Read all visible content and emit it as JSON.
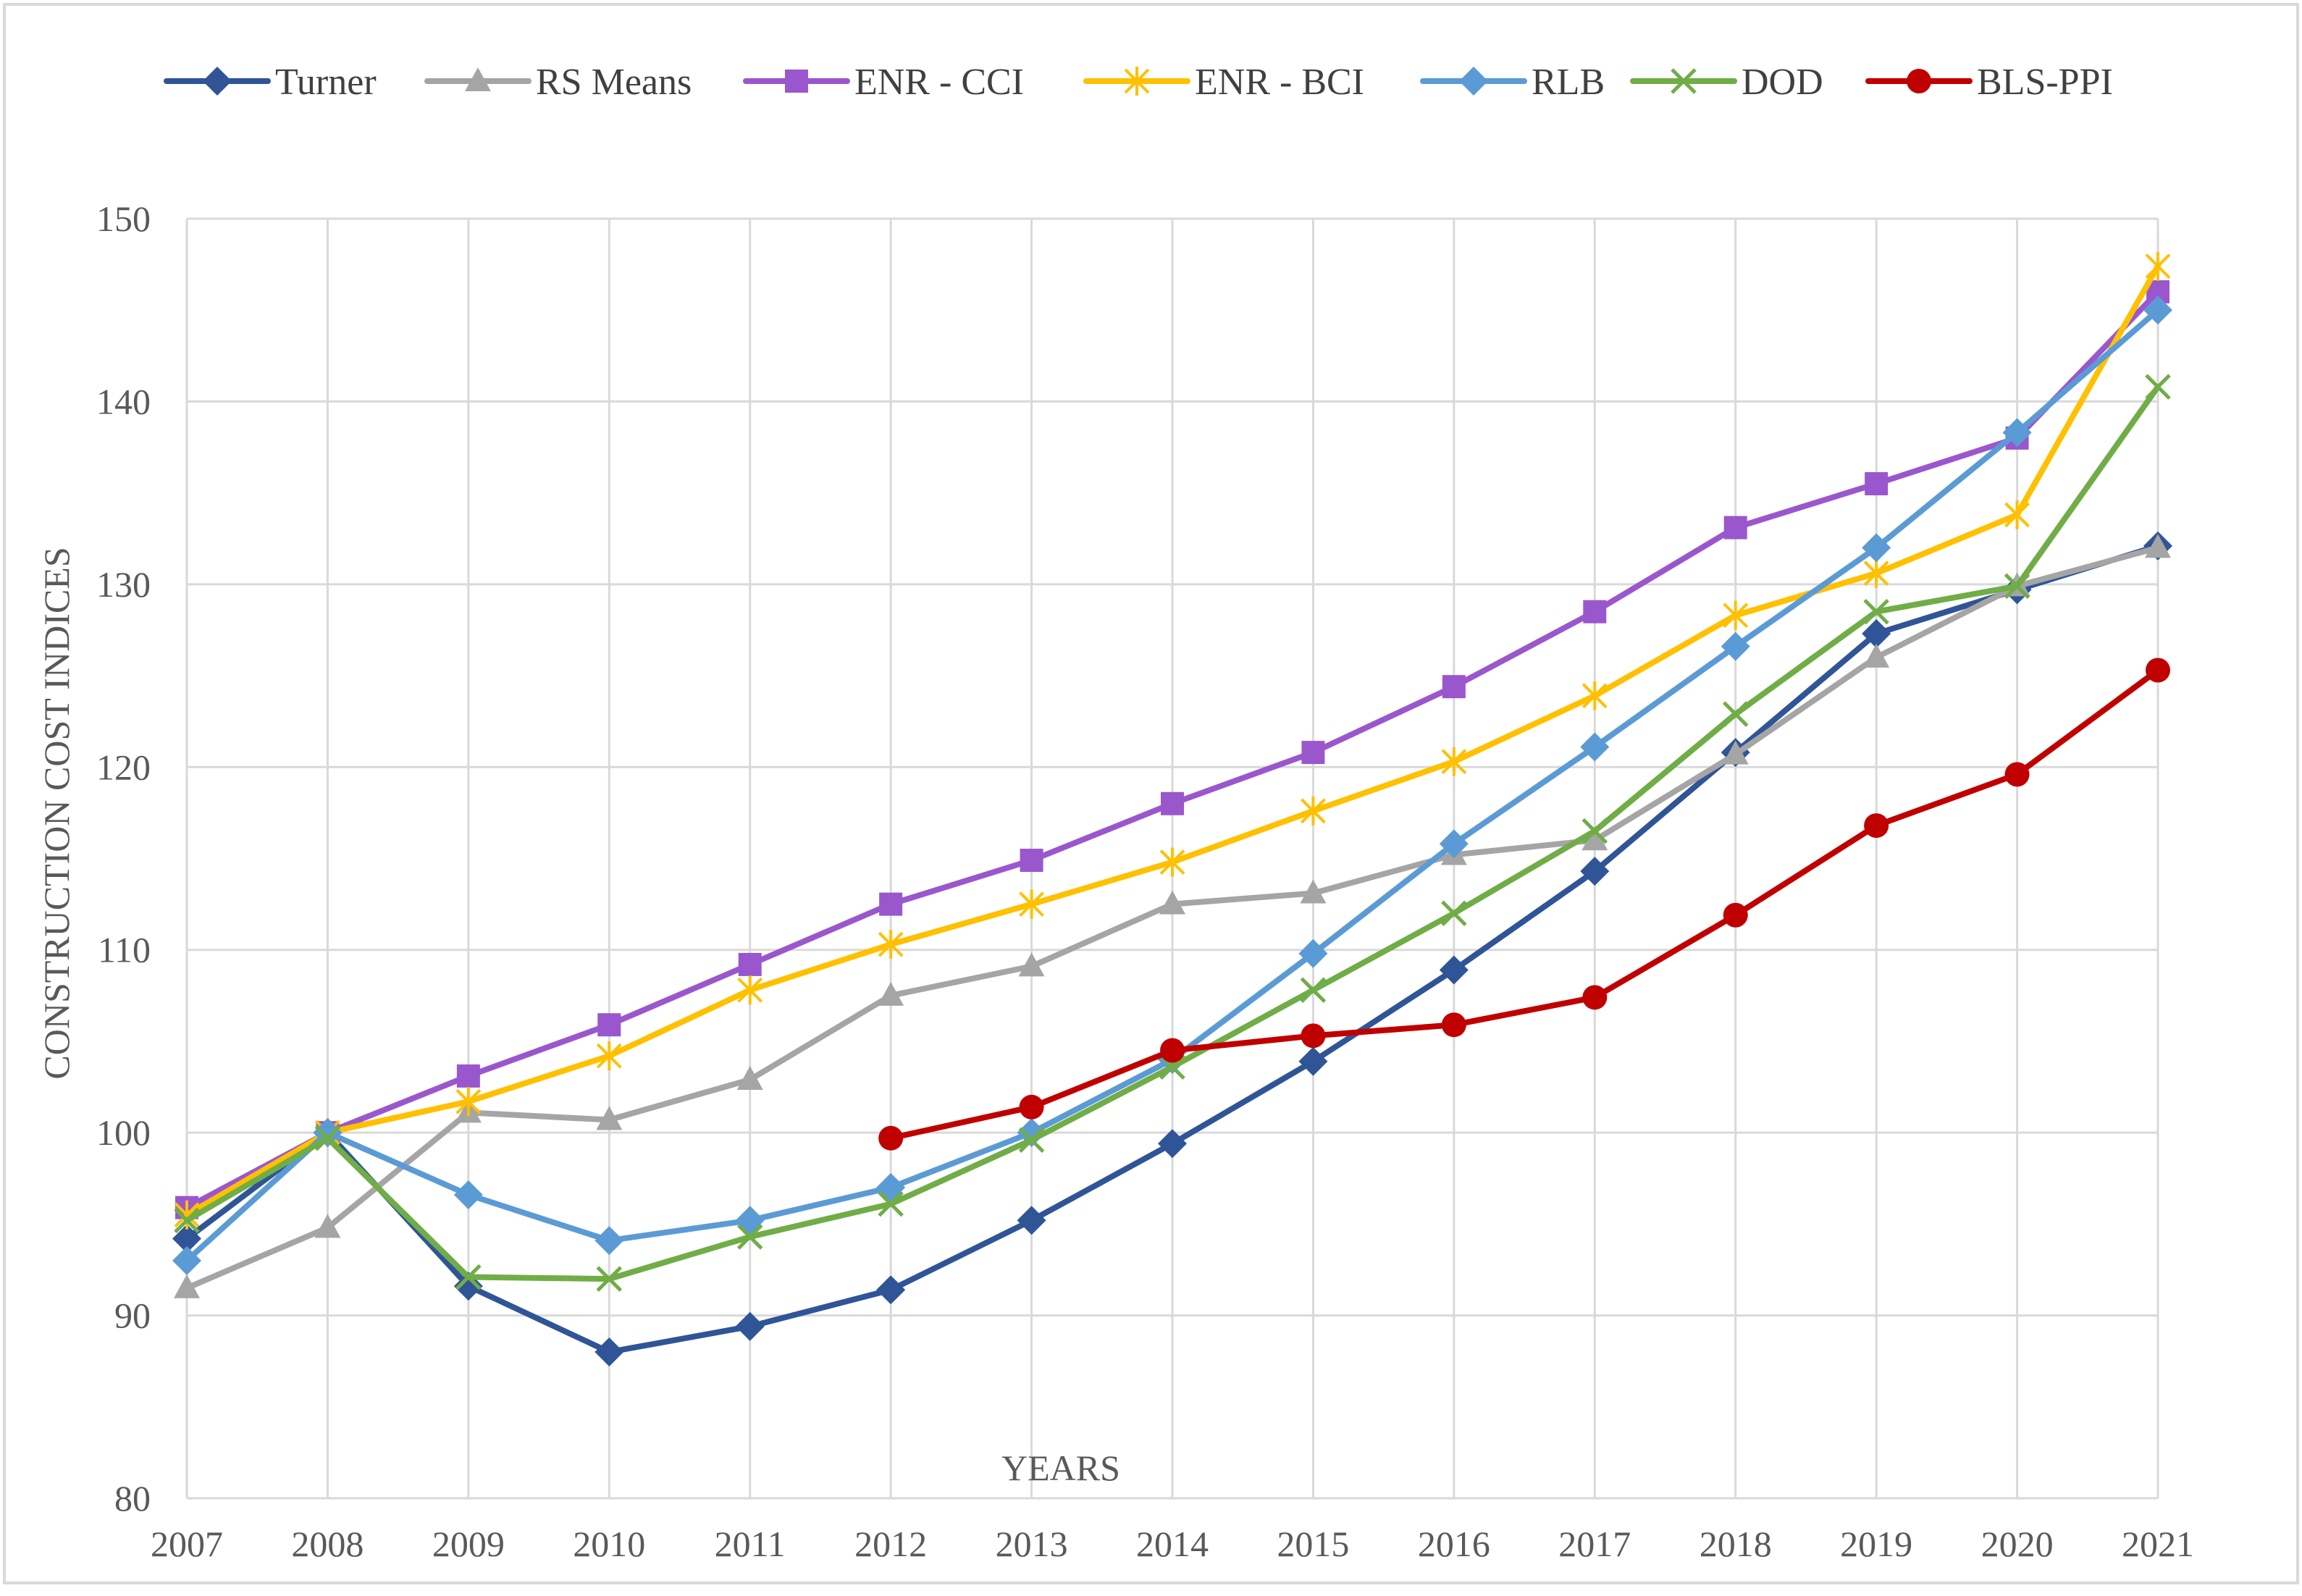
{
  "chart_data": {
    "type": "line",
    "title": "",
    "xlabel": "YEARS",
    "ylabel": "CONSTRUCTION COST INDICES",
    "categories": [
      "2007",
      "2008",
      "2009",
      "2010",
      "2011",
      "2012",
      "2013",
      "2014",
      "2015",
      "2016",
      "2017",
      "2018",
      "2019",
      "2020",
      "2021"
    ],
    "ylim": [
      80,
      150
    ],
    "yticks": [
      "80",
      "90",
      "100",
      "110",
      "120",
      "130",
      "140",
      "150"
    ],
    "grid": true,
    "legend_position": "top",
    "series": [
      {
        "name": "Turner",
        "color": "#2F5597",
        "marker": "diamond",
        "values": [
          94.2,
          100,
          91.6,
          88.0,
          89.4,
          91.4,
          95.2,
          99.4,
          103.9,
          108.9,
          114.3,
          120.8,
          127.3,
          129.7,
          132.1
        ]
      },
      {
        "name": "RS Means",
        "color": "#A5A5A5",
        "marker": "triangle",
        "values": [
          91.5,
          94.8,
          101.1,
          100.7,
          102.9,
          107.5,
          109.1,
          112.5,
          113.1,
          115.2,
          116.0,
          120.7,
          126.0,
          129.9,
          132.0
        ]
      },
      {
        "name": "ENR - CCI",
        "color": "#9A57CD",
        "marker": "square",
        "values": [
          95.9,
          100,
          103.1,
          105.9,
          109.2,
          112.5,
          114.9,
          118.0,
          120.8,
          124.4,
          128.5,
          133.1,
          135.5,
          138.0,
          146.0
        ]
      },
      {
        "name": "ENR - BCI",
        "color": "#FFC000",
        "marker": "asterisk",
        "values": [
          95.5,
          100,
          101.7,
          104.2,
          107.8,
          110.3,
          112.5,
          114.8,
          117.6,
          120.3,
          123.9,
          128.3,
          130.6,
          133.8,
          147.4
        ]
      },
      {
        "name": "RLB",
        "color": "#5B9BD5",
        "marker": "diamond",
        "values": [
          93.0,
          100,
          96.6,
          94.1,
          95.2,
          97.0,
          100.0,
          104.0,
          109.8,
          115.8,
          121.1,
          126.6,
          132.0,
          138.3,
          145.0
        ]
      },
      {
        "name": "DOD",
        "color": "#70AD47",
        "marker": "x",
        "values": [
          95.2,
          99.7,
          92.1,
          92.0,
          94.3,
          96.1,
          99.6,
          103.6,
          107.8,
          112.0,
          116.5,
          122.9,
          128.5,
          129.9,
          140.8
        ]
      },
      {
        "name": "BLS-PPI",
        "color": "#C00000",
        "marker": "circle",
        "values": [
          null,
          null,
          null,
          null,
          null,
          99.7,
          101.4,
          104.5,
          105.3,
          105.9,
          107.4,
          111.9,
          116.8,
          119.6,
          125.3
        ]
      }
    ]
  }
}
